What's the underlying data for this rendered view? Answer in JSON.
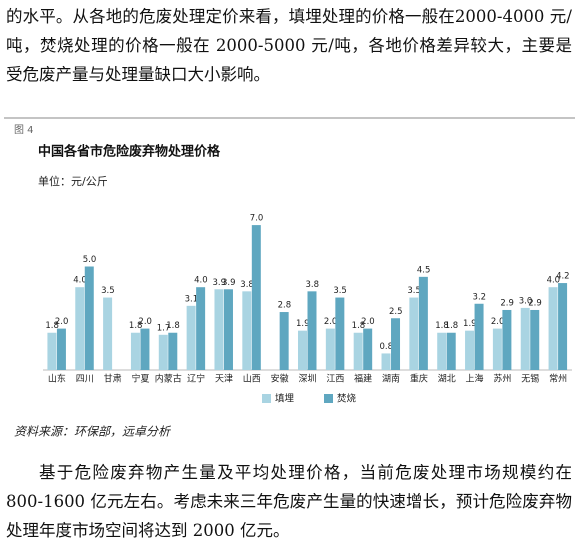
{
  "paragraphs": [
    "的水平。从各地的危废处理定价来看，填埋处理的价格一般在2000-4000 元/吨，焚烧处理的价格一般在 2000-5000 元/吨，各地价格差异较大，主要是受危废产量与处理量缺口大小影响。",
    "基于危险废弃物产生量及平均处理价格，当前危废处理市场规模约在 800-1600 亿元左右。考虑未来三年危废产生量的快速增长，预计危险废弃物处理年度市场空间将达到 2000 亿元。"
  ],
  "figure_label": "图 4",
  "unit": "单位：元/公斤",
  "source": "资料来源：环保部，远卓分析",
  "chart_data": {
    "type": "bar",
    "title": "中国各省市危险废弃物处理价格",
    "categories": [
      "山东",
      "四川",
      "甘肃",
      "宁夏",
      "内蒙古",
      "辽宁",
      "天津",
      "山西",
      "安徽",
      "深圳",
      "江西",
      "福建",
      "湖南",
      "重庆",
      "湖北",
      "上海",
      "苏州",
      "无锡",
      "常州"
    ],
    "series": [
      {
        "name": "填埋",
        "color": "#a9d4e2",
        "values": [
          1.8,
          4.0,
          3.5,
          1.8,
          1.7,
          3.1,
          3.9,
          3.8,
          null,
          1.9,
          2.0,
          1.8,
          0.8,
          3.5,
          1.8,
          1.9,
          2.0,
          3.0,
          4.0
        ],
        "value_labels": [
          "1.8",
          "4.0",
          "3.5",
          "1.8",
          "1.7",
          "3.1",
          "3.9",
          "3.8",
          null,
          "1.9",
          "2.0",
          "1.8",
          "0.8",
          "3.5",
          "1.8",
          "1.9",
          "2.0",
          "3.0",
          "4.0"
        ]
      },
      {
        "name": "焚烧",
        "color": "#5fa7c0",
        "values": [
          2.0,
          5.0,
          null,
          2.0,
          1.8,
          4.0,
          3.9,
          7.0,
          2.8,
          3.8,
          3.5,
          2.0,
          2.5,
          4.5,
          1.8,
          3.2,
          2.9,
          2.9,
          4.2
        ],
        "value_labels": [
          "2.0",
          "5.0",
          null,
          "2.0",
          "1.8",
          "4.0",
          "3.9",
          "7.0",
          "2.8",
          "3.8",
          "3.5",
          "2.0",
          "2.5",
          "4.5",
          "1.8",
          "3.2",
          "2.9",
          "2.9",
          "4.2"
        ]
      }
    ]
  }
}
